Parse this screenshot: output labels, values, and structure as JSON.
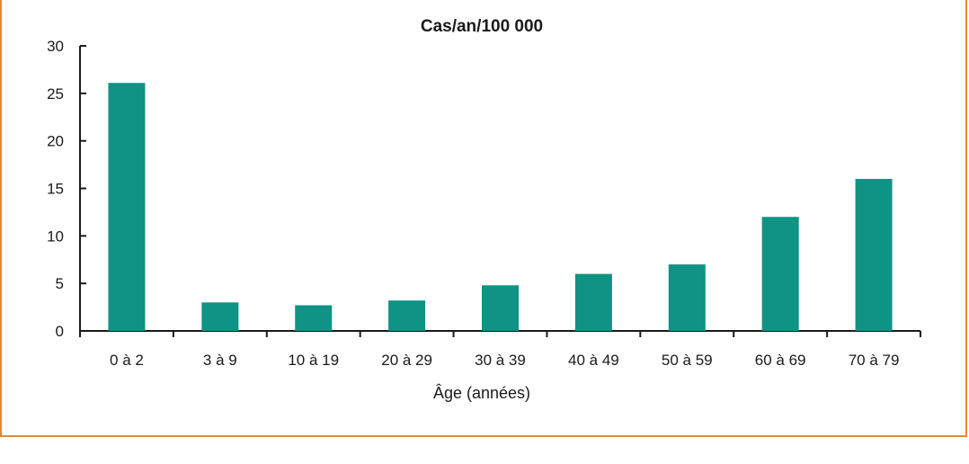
{
  "chart_data": {
    "type": "bar",
    "title": "Cas/an/100 000",
    "xlabel": "Âge (années)",
    "ylabel": "",
    "categories": [
      "0 à 2",
      "3 à 9",
      "10 à 19",
      "20 à 29",
      "30 à 39",
      "40 à 49",
      "50 à 59",
      "60 à 69",
      "70 à 79"
    ],
    "values": [
      26.1,
      3.0,
      2.7,
      3.2,
      4.8,
      6.0,
      7.0,
      12.0,
      16.0
    ],
    "ylim": [
      0,
      30
    ],
    "yticks": [
      0,
      5,
      10,
      15,
      20,
      25,
      30
    ],
    "bar_color": "#0e9384",
    "frame_color": "#e8892c",
    "grid": false,
    "legend": "none"
  }
}
